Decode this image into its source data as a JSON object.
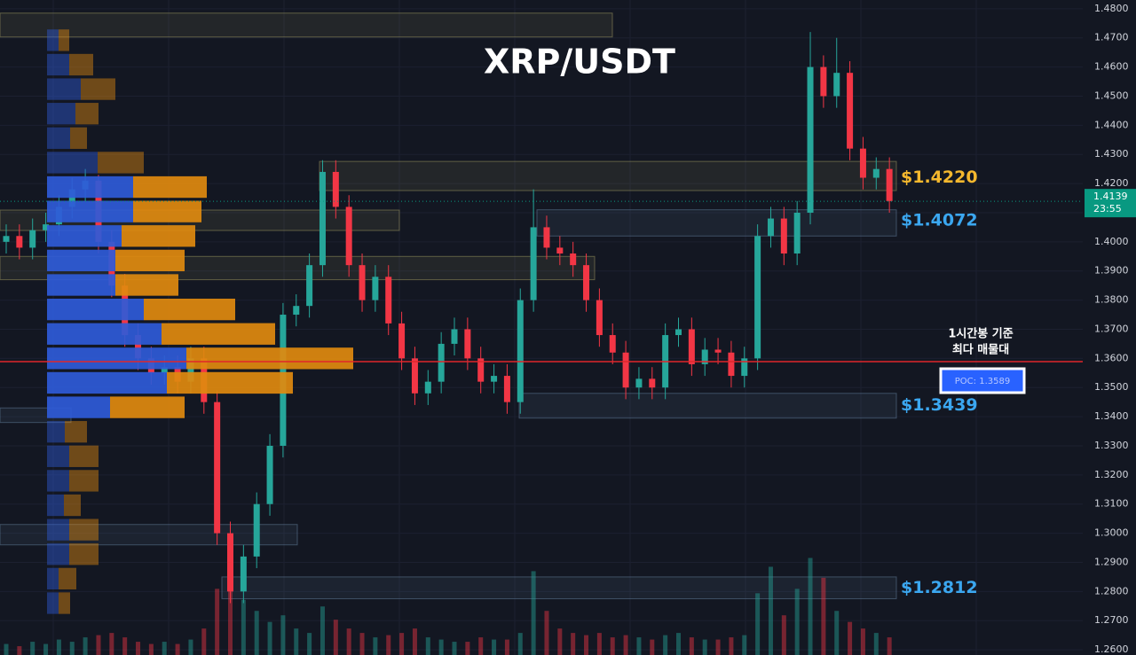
{
  "chart_data": {
    "type": "candlestick",
    "title": "XRP/USDT",
    "ylim": [
      1.2582,
      1.483
    ],
    "yticks": [
      {
        "value": 1.48,
        "label": "1.4800"
      },
      {
        "value": 1.47,
        "label": "1.4700"
      },
      {
        "value": 1.46,
        "label": "1.4600"
      },
      {
        "value": 1.45,
        "label": "1.4500"
      },
      {
        "value": 1.44,
        "label": "1.4400"
      },
      {
        "value": 1.43,
        "label": "1.4300"
      },
      {
        "value": 1.42,
        "label": "1.4200"
      },
      {
        "value": 1.41,
        "label": "1.4100"
      },
      {
        "value": 1.4,
        "label": "1.4000"
      },
      {
        "value": 1.39,
        "label": "1.3900"
      },
      {
        "value": 1.38,
        "label": "1.3800"
      },
      {
        "value": 1.37,
        "label": "1.3700"
      },
      {
        "value": 1.36,
        "label": "1.3600"
      },
      {
        "value": 1.35,
        "label": "1.3500"
      },
      {
        "value": 1.34,
        "label": "1.3400"
      },
      {
        "value": 1.33,
        "label": "1.3300"
      },
      {
        "value": 1.32,
        "label": "1.3200"
      },
      {
        "value": 1.31,
        "label": "1.3100"
      },
      {
        "value": 1.3,
        "label": "1.3000"
      },
      {
        "value": 1.29,
        "label": "1.2900"
      },
      {
        "value": 1.28,
        "label": "1.2800"
      },
      {
        "value": 1.27,
        "label": "1.2700"
      },
      {
        "value": 1.26,
        "label": "1.2600"
      }
    ],
    "grid": true,
    "up_color": "#26a69a",
    "down_color": "#f23645",
    "open": [
      1.4,
      1.402,
      1.398,
      1.404,
      1.406,
      1.412,
      1.418,
      1.421,
      1.4,
      1.385,
      1.368,
      1.36,
      1.355,
      1.357,
      1.352,
      1.36,
      1.345,
      1.3,
      1.28,
      1.292,
      1.31,
      1.33,
      1.375,
      1.378,
      1.392,
      1.424,
      1.412,
      1.392,
      1.38,
      1.388,
      1.372,
      1.36,
      1.348,
      1.352,
      1.365,
      1.37,
      1.36,
      1.352,
      1.354,
      1.345,
      1.38,
      1.405,
      1.398,
      1.396,
      1.392,
      1.38,
      1.368,
      1.362,
      1.35,
      1.353,
      1.35,
      1.368,
      1.37,
      1.358,
      1.363,
      1.362,
      1.354,
      1.36,
      1.402,
      1.408,
      1.396,
      1.41,
      1.46,
      1.45,
      1.458,
      1.432,
      1.422,
      1.425
    ],
    "high": [
      1.406,
      1.406,
      1.408,
      1.41,
      1.416,
      1.422,
      1.425,
      1.423,
      1.404,
      1.389,
      1.372,
      1.364,
      1.361,
      1.361,
      1.364,
      1.364,
      1.349,
      1.304,
      1.296,
      1.314,
      1.334,
      1.379,
      1.382,
      1.396,
      1.428,
      1.428,
      1.416,
      1.396,
      1.392,
      1.392,
      1.376,
      1.364,
      1.356,
      1.369,
      1.374,
      1.374,
      1.364,
      1.358,
      1.358,
      1.384,
      1.418,
      1.409,
      1.402,
      1.4,
      1.396,
      1.384,
      1.372,
      1.366,
      1.357,
      1.357,
      1.372,
      1.374,
      1.374,
      1.367,
      1.367,
      1.366,
      1.364,
      1.406,
      1.412,
      1.412,
      1.414,
      1.472,
      1.464,
      1.47,
      1.462,
      1.436,
      1.429,
      1.429
    ],
    "low": [
      1.396,
      1.394,
      1.394,
      1.4,
      1.402,
      1.408,
      1.414,
      1.396,
      1.381,
      1.364,
      1.356,
      1.351,
      1.351,
      1.348,
      1.348,
      1.341,
      1.296,
      1.276,
      1.276,
      1.288,
      1.306,
      1.326,
      1.371,
      1.374,
      1.388,
      1.408,
      1.388,
      1.376,
      1.376,
      1.368,
      1.356,
      1.344,
      1.344,
      1.348,
      1.361,
      1.356,
      1.348,
      1.348,
      1.341,
      1.341,
      1.376,
      1.394,
      1.392,
      1.388,
      1.376,
      1.364,
      1.358,
      1.346,
      1.346,
      1.346,
      1.346,
      1.364,
      1.354,
      1.354,
      1.358,
      1.35,
      1.35,
      1.356,
      1.398,
      1.392,
      1.392,
      1.406,
      1.446,
      1.446,
      1.428,
      1.418,
      1.418,
      1.41
    ],
    "close": [
      1.402,
      1.398,
      1.404,
      1.406,
      1.412,
      1.418,
      1.421,
      1.4,
      1.385,
      1.368,
      1.36,
      1.355,
      1.357,
      1.352,
      1.36,
      1.345,
      1.3,
      1.28,
      1.292,
      1.31,
      1.33,
      1.375,
      1.378,
      1.392,
      1.424,
      1.412,
      1.392,
      1.38,
      1.388,
      1.372,
      1.36,
      1.348,
      1.352,
      1.365,
      1.37,
      1.36,
      1.352,
      1.354,
      1.345,
      1.38,
      1.405,
      1.398,
      1.396,
      1.392,
      1.38,
      1.368,
      1.362,
      1.35,
      1.353,
      1.35,
      1.368,
      1.37,
      1.358,
      1.363,
      1.362,
      1.354,
      1.36,
      1.402,
      1.408,
      1.396,
      1.41,
      1.46,
      1.45,
      1.458,
      1.432,
      1.422,
      1.425,
      1.414
    ],
    "volume": [
      5,
      4,
      6,
      5,
      7,
      6,
      8,
      9,
      10,
      8,
      6,
      5,
      6,
      5,
      7,
      12,
      30,
      45,
      25,
      20,
      15,
      18,
      12,
      10,
      22,
      16,
      12,
      10,
      8,
      9,
      10,
      12,
      8,
      7,
      6,
      6,
      8,
      7,
      7,
      10,
      38,
      20,
      12,
      10,
      9,
      10,
      8,
      9,
      8,
      7,
      9,
      10,
      8,
      7,
      7,
      8,
      9,
      28,
      40,
      18,
      30,
      44,
      35,
      20,
      15,
      12,
      10,
      8
    ],
    "profile": {
      "levels": [
        1.4692,
        1.4608,
        1.4524,
        1.444,
        1.4356,
        1.4272,
        1.4188,
        1.4104,
        1.402,
        1.3936,
        1.3852,
        1.3768,
        1.3684,
        1.36,
        1.3516,
        1.3432,
        1.3348,
        1.3264,
        1.318,
        1.3096,
        1.3012,
        1.2928,
        1.2844,
        1.276
      ],
      "buy": [
        13,
        25,
        38,
        32,
        26,
        57,
        97,
        97,
        84,
        77,
        77,
        109,
        129,
        157,
        135,
        71,
        20,
        25,
        25,
        19,
        25,
        25,
        13,
        13
      ],
      "sell": [
        12,
        27,
        39,
        26,
        19,
        52,
        83,
        77,
        83,
        78,
        71,
        103,
        128,
        188,
        142,
        84,
        25,
        33,
        33,
        19,
        33,
        33,
        20,
        13
      ],
      "buy_color": "#2f5bd8",
      "sell_color": "#e08a0f"
    },
    "zones": [
      {
        "low": 1.4703,
        "high": 1.4785,
        "color": "#b4ad6a"
      },
      {
        "low": 1.4176,
        "high": 1.4276,
        "color": "#b4ad6a",
        "price": 1.422,
        "label": "$1.4220",
        "label_color": "#f5b82e"
      },
      {
        "low": 1.402,
        "high": 1.411,
        "color": "#6f8fb0",
        "price": 1.4072,
        "label": "$1.4072",
        "label_color": "#3ba7f0"
      },
      {
        "low": 1.4039,
        "high": 1.4109,
        "color": "#b4ad6a"
      },
      {
        "low": 1.387,
        "high": 1.395,
        "color": "#b4ad6a"
      },
      {
        "low": 1.3395,
        "high": 1.348,
        "color": "#6f8fb0",
        "price": 1.3439,
        "label": "$1.3439",
        "label_color": "#3ba7f0"
      },
      {
        "low": 1.338,
        "high": 1.343,
        "color": "#6f8fb0"
      },
      {
        "low": 1.296,
        "high": 1.303,
        "color": "#6f8fb0"
      },
      {
        "low": 1.2775,
        "high": 1.285,
        "color": "#6f8fb0",
        "price": 1.2812,
        "label": "$1.2812",
        "label_color": "#3ba7f0"
      }
    ],
    "poc": {
      "value": 1.3589,
      "label": "POC: 1.3589",
      "color": "#e0262b"
    },
    "annotation": [
      "1시간봉 기준",
      "최다 매물대"
    ],
    "last_price": {
      "value": 1.4139,
      "countdown": "23:55",
      "color": "#089981"
    }
  }
}
